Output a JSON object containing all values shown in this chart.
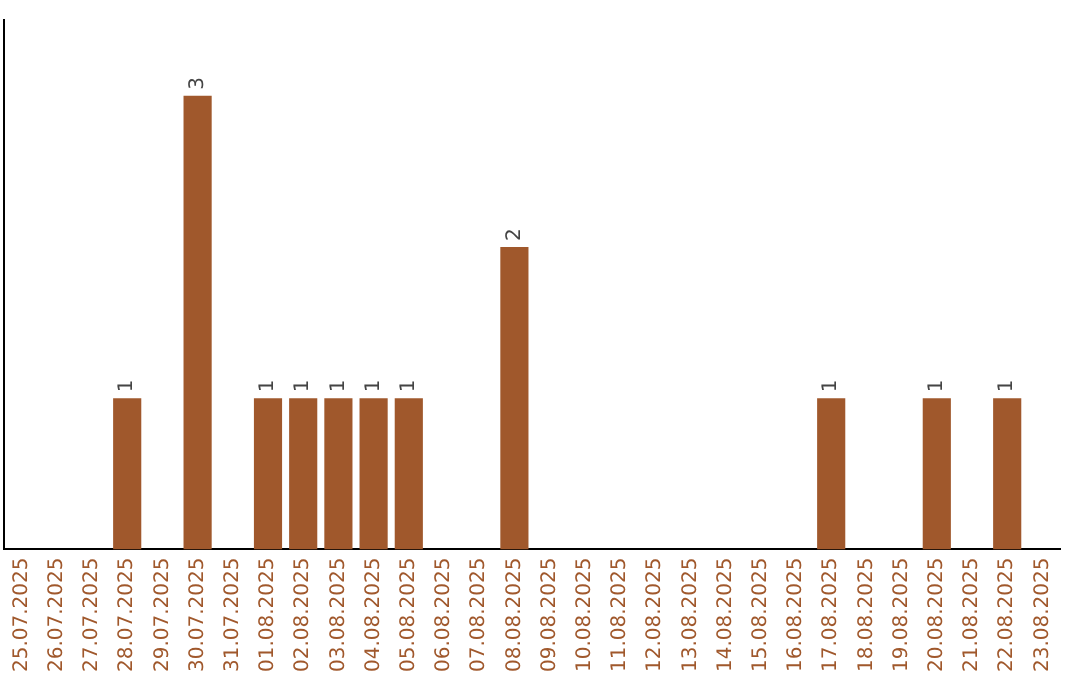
{
  "chart_data": {
    "type": "bar",
    "categories": [
      "25.07.2025",
      "26.07.2025",
      "27.07.2025",
      "28.07.2025",
      "29.07.2025",
      "30.07.2025",
      "31.07.2025",
      "01.08.2025",
      "02.08.2025",
      "03.08.2025",
      "04.08.2025",
      "05.08.2025",
      "06.08.2025",
      "07.08.2025",
      "08.08.2025",
      "09.08.2025",
      "10.08.2025",
      "11.08.2025",
      "12.08.2025",
      "13.08.2025",
      "14.08.2025",
      "15.08.2025",
      "16.08.2025",
      "17.08.2025",
      "18.08.2025",
      "19.08.2025",
      "20.08.2025",
      "21.08.2025",
      "22.08.2025",
      "23.08.2025"
    ],
    "values": [
      null,
      null,
      null,
      1,
      null,
      3,
      null,
      1,
      1,
      1,
      1,
      1,
      null,
      null,
      2,
      null,
      null,
      null,
      null,
      null,
      null,
      null,
      null,
      1,
      null,
      null,
      1,
      null,
      1,
      null
    ],
    "color": "#a0582c",
    "data_labels": true,
    "grid": false,
    "legend": false
  }
}
